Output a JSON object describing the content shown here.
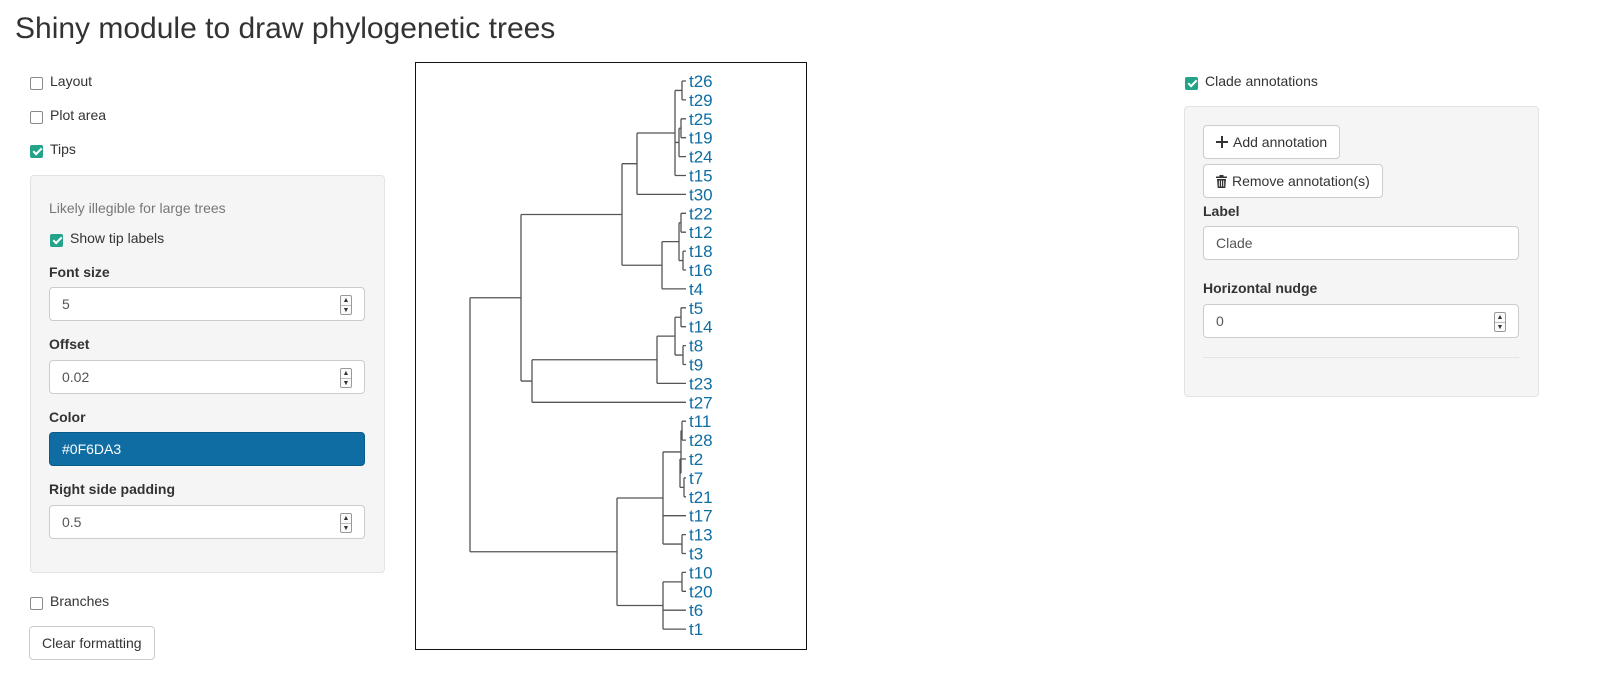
{
  "page": {
    "title": "Shiny module to draw phylogenetic trees"
  },
  "left_panel": {
    "layout": {
      "label": "Layout",
      "checked": false
    },
    "plot_area": {
      "label": "Plot area",
      "checked": false
    },
    "tips": {
      "label": "Tips",
      "checked": true
    },
    "tips_panel": {
      "hint": "Likely illegible for large trees",
      "show_tip_labels": {
        "label": "Show tip labels",
        "checked": true
      },
      "font_size": {
        "label": "Font size",
        "value": "5"
      },
      "offset": {
        "label": "Offset",
        "value": "0.02"
      },
      "color": {
        "label": "Color",
        "value": "#0F6DA3"
      },
      "right_padding": {
        "label": "Right side padding",
        "value": "0.5"
      }
    },
    "branches": {
      "label": "Branches",
      "checked": false
    },
    "clear_button": "Clear formatting"
  },
  "right_panel": {
    "clade_annotations": {
      "label": "Clade annotations",
      "checked": true
    },
    "add_button": "Add annotation",
    "remove_button": "Remove annotation(s)",
    "label_field": {
      "label": "Label",
      "value": "Clade"
    },
    "nudge_field": {
      "label": "Horizontal nudge",
      "value": "0"
    }
  },
  "tree": {
    "tip_color": "#0F6DA3",
    "tips": [
      "t26",
      "t29",
      "t25",
      "t19",
      "t24",
      "t15",
      "t30",
      "t22",
      "t12",
      "t18",
      "t16",
      "t4",
      "t5",
      "t14",
      "t8",
      "t9",
      "t23",
      "t27",
      "t11",
      "t28",
      "t2",
      "t7",
      "t21",
      "t17",
      "t13",
      "t3",
      "t10",
      "t20",
      "t6",
      "t1"
    ]
  },
  "colors": {
    "accent": "#22a38a",
    "tip_label": "#0F6DA3"
  }
}
